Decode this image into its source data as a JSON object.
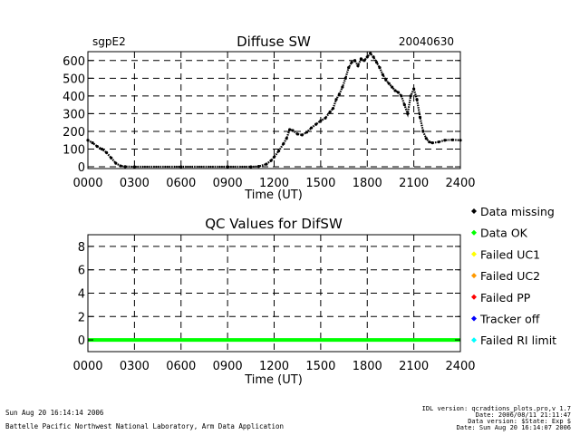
{
  "chart_data": [
    {
      "type": "scatter",
      "title": "Diffuse SW",
      "site_label": "sgpE2",
      "date_label": "20040630",
      "xlabel": "Time (UT)",
      "ylabel": "",
      "xlim": [
        0,
        2400
      ],
      "ylim": [
        -10,
        650
      ],
      "xticks": [
        "0000",
        "0300",
        "0600",
        "0900",
        "1200",
        "1500",
        "1800",
        "2100",
        "2400"
      ],
      "yticks": [
        0,
        100,
        200,
        300,
        400,
        500,
        600
      ],
      "grid": true,
      "series": [
        {
          "name": "Diffuse SW",
          "color": "#000000",
          "x": [
            0,
            30,
            60,
            90,
            120,
            150,
            180,
            210,
            240,
            300,
            600,
            900,
            1050,
            1100,
            1150,
            1180,
            1200,
            1230,
            1260,
            1280,
            1300,
            1320,
            1350,
            1380,
            1410,
            1440,
            1470,
            1500,
            1530,
            1560,
            1580,
            1600,
            1620,
            1640,
            1660,
            1680,
            1700,
            1720,
            1740,
            1760,
            1780,
            1800,
            1820,
            1840,
            1860,
            1880,
            1900,
            1920,
            1940,
            1960,
            1980,
            2000,
            2020,
            2040,
            2060,
            2080,
            2100,
            2120,
            2140,
            2160,
            2180,
            2200,
            2220,
            2260,
            2300,
            2350,
            2400
          ],
          "y": [
            150,
            135,
            115,
            100,
            80,
            50,
            20,
            5,
            1,
            0,
            0,
            0,
            0,
            2,
            15,
            35,
            55,
            90,
            130,
            160,
            210,
            205,
            185,
            180,
            195,
            220,
            240,
            260,
            275,
            310,
            330,
            380,
            410,
            450,
            500,
            560,
            590,
            600,
            570,
            610,
            600,
            620,
            640,
            620,
            590,
            560,
            520,
            490,
            470,
            450,
            430,
            420,
            400,
            350,
            300,
            400,
            440,
            380,
            280,
            200,
            160,
            140,
            135,
            140,
            150,
            152,
            150
          ]
        }
      ]
    },
    {
      "type": "line",
      "title": "QC Values for DifSW",
      "xlabel": "Time (UT)",
      "ylabel": "",
      "xlim": [
        0,
        2400
      ],
      "ylim": [
        -1,
        9
      ],
      "xticks": [
        "0000",
        "0300",
        "0600",
        "0900",
        "1200",
        "1500",
        "1800",
        "2100",
        "2400"
      ],
      "yticks": [
        0,
        2,
        4,
        6,
        8
      ],
      "grid": true,
      "series": [
        {
          "name": "Data OK",
          "color": "#00ff00",
          "x": [
            0,
            2400
          ],
          "y": [
            0,
            0
          ]
        }
      ],
      "legend_position": "right",
      "legend": [
        {
          "label": "Data missing",
          "color": "#000000"
        },
        {
          "label": "Data OK",
          "color": "#00ff00"
        },
        {
          "label": "Failed UC1",
          "color": "#ffff00"
        },
        {
          "label": "Failed UC2",
          "color": "#ff9900"
        },
        {
          "label": "Failed PP",
          "color": "#ff0000"
        },
        {
          "label": "Tracker off",
          "color": "#0000ff"
        },
        {
          "label": "Failed RI limit",
          "color": "#00ffff"
        }
      ]
    }
  ],
  "footer": {
    "left_line1": "Sun Aug 20 16:14:14 2006",
    "left_line2": "Battelle Pacific Northwest National Laboratory, Arm Data Application",
    "right_line1": "IDL version: qcradtions_plots.pro,v 1.7",
    "right_line2": "Date: 2006/08/11 21:11:47",
    "right_line3": "Data version: $State: Exp $",
    "right_line4": "Date: Sun Aug 20 16:14:07 2006"
  }
}
